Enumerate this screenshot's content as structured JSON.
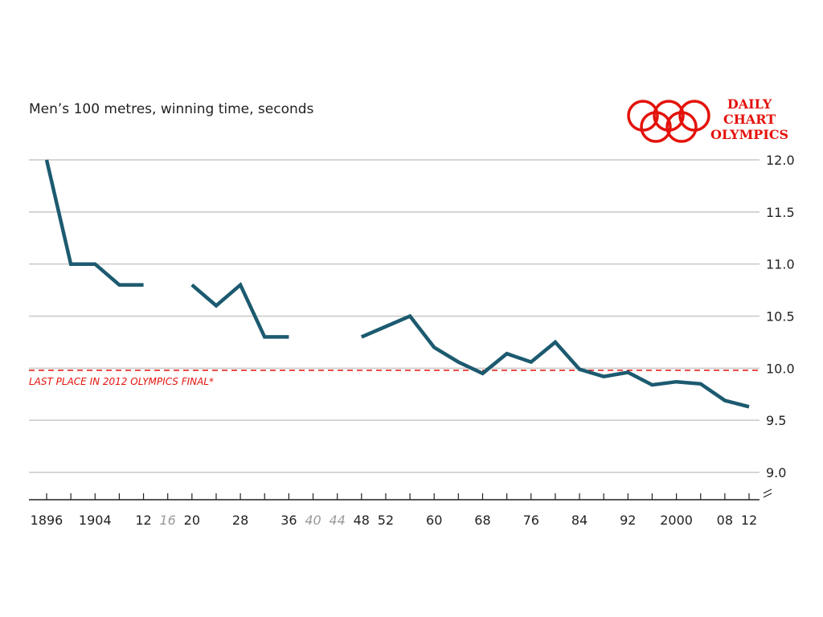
{
  "title": "Men’s 100 metres, winning time, seconds",
  "brand": {
    "lines": [
      "DAILY",
      "CHART",
      "OLYMPICS"
    ],
    "logo_icon": "olympic-rings-icon",
    "color": "#e3120b"
  },
  "chart_data": {
    "type": "line",
    "title": "Men’s 100 metres, winning time, seconds",
    "xlabel": "",
    "ylabel": "",
    "ylim": [
      9.0,
      12.0
    ],
    "y_axis_side": "right",
    "y_ticks": [
      "12.0",
      "11.5",
      "11.0",
      "10.5",
      "10.0",
      "9.5",
      "9.0"
    ],
    "x_ticks": [
      {
        "year": 1896,
        "label": "1896",
        "held": true
      },
      {
        "year": 1904,
        "label": "1904",
        "held": true
      },
      {
        "year": 1912,
        "label": "12",
        "held": true
      },
      {
        "year": 1916,
        "label": "16",
        "held": false
      },
      {
        "year": 1920,
        "label": "20",
        "held": true
      },
      {
        "year": 1928,
        "label": "28",
        "held": true
      },
      {
        "year": 1936,
        "label": "36",
        "held": true
      },
      {
        "year": 1940,
        "label": "40",
        "held": false
      },
      {
        "year": 1944,
        "label": "44",
        "held": false
      },
      {
        "year": 1948,
        "label": "48",
        "held": true
      },
      {
        "year": 1952,
        "label": "52",
        "held": true
      },
      {
        "year": 1960,
        "label": "60",
        "held": true
      },
      {
        "year": 1968,
        "label": "68",
        "held": true
      },
      {
        "year": 1976,
        "label": "76",
        "held": true
      },
      {
        "year": 1984,
        "label": "84",
        "held": true
      },
      {
        "year": 1992,
        "label": "92",
        "held": true
      },
      {
        "year": 2000,
        "label": "2000",
        "held": true
      },
      {
        "year": 2008,
        "label": "08",
        "held": true
      },
      {
        "year": 2012,
        "label": "12",
        "held": true
      }
    ],
    "series": [
      {
        "color": "#1c5a6f",
        "segments": [
          [
            [
              1896,
              12.0
            ],
            [
              1900,
              11.0
            ],
            [
              1904,
              11.0
            ],
            [
              1908,
              10.8
            ],
            [
              1912,
              10.8
            ]
          ],
          [
            [
              1920,
              10.8
            ],
            [
              1924,
              10.6
            ],
            [
              1928,
              10.8
            ],
            [
              1932,
              10.3
            ],
            [
              1936,
              10.3
            ]
          ],
          [
            [
              1948,
              10.3
            ],
            [
              1952,
              10.4
            ],
            [
              1956,
              10.5
            ],
            [
              1960,
              10.2
            ],
            [
              1964,
              10.06
            ],
            [
              1968,
              9.95
            ],
            [
              1972,
              10.14
            ],
            [
              1976,
              10.06
            ],
            [
              1980,
              10.25
            ],
            [
              1984,
              9.99
            ],
            [
              1988,
              9.92
            ],
            [
              1992,
              9.96
            ],
            [
              1996,
              9.84
            ],
            [
              2000,
              9.87
            ],
            [
              2004,
              9.85
            ],
            [
              2008,
              9.69
            ],
            [
              2012,
              9.63
            ]
          ]
        ]
      }
    ],
    "reference_line": {
      "value": 9.98,
      "label": "LAST PLACE IN 2012 OLYMPICS FINAL*",
      "color": "#e3120b",
      "style": "dashed"
    },
    "grid": true,
    "axis_break": true
  }
}
